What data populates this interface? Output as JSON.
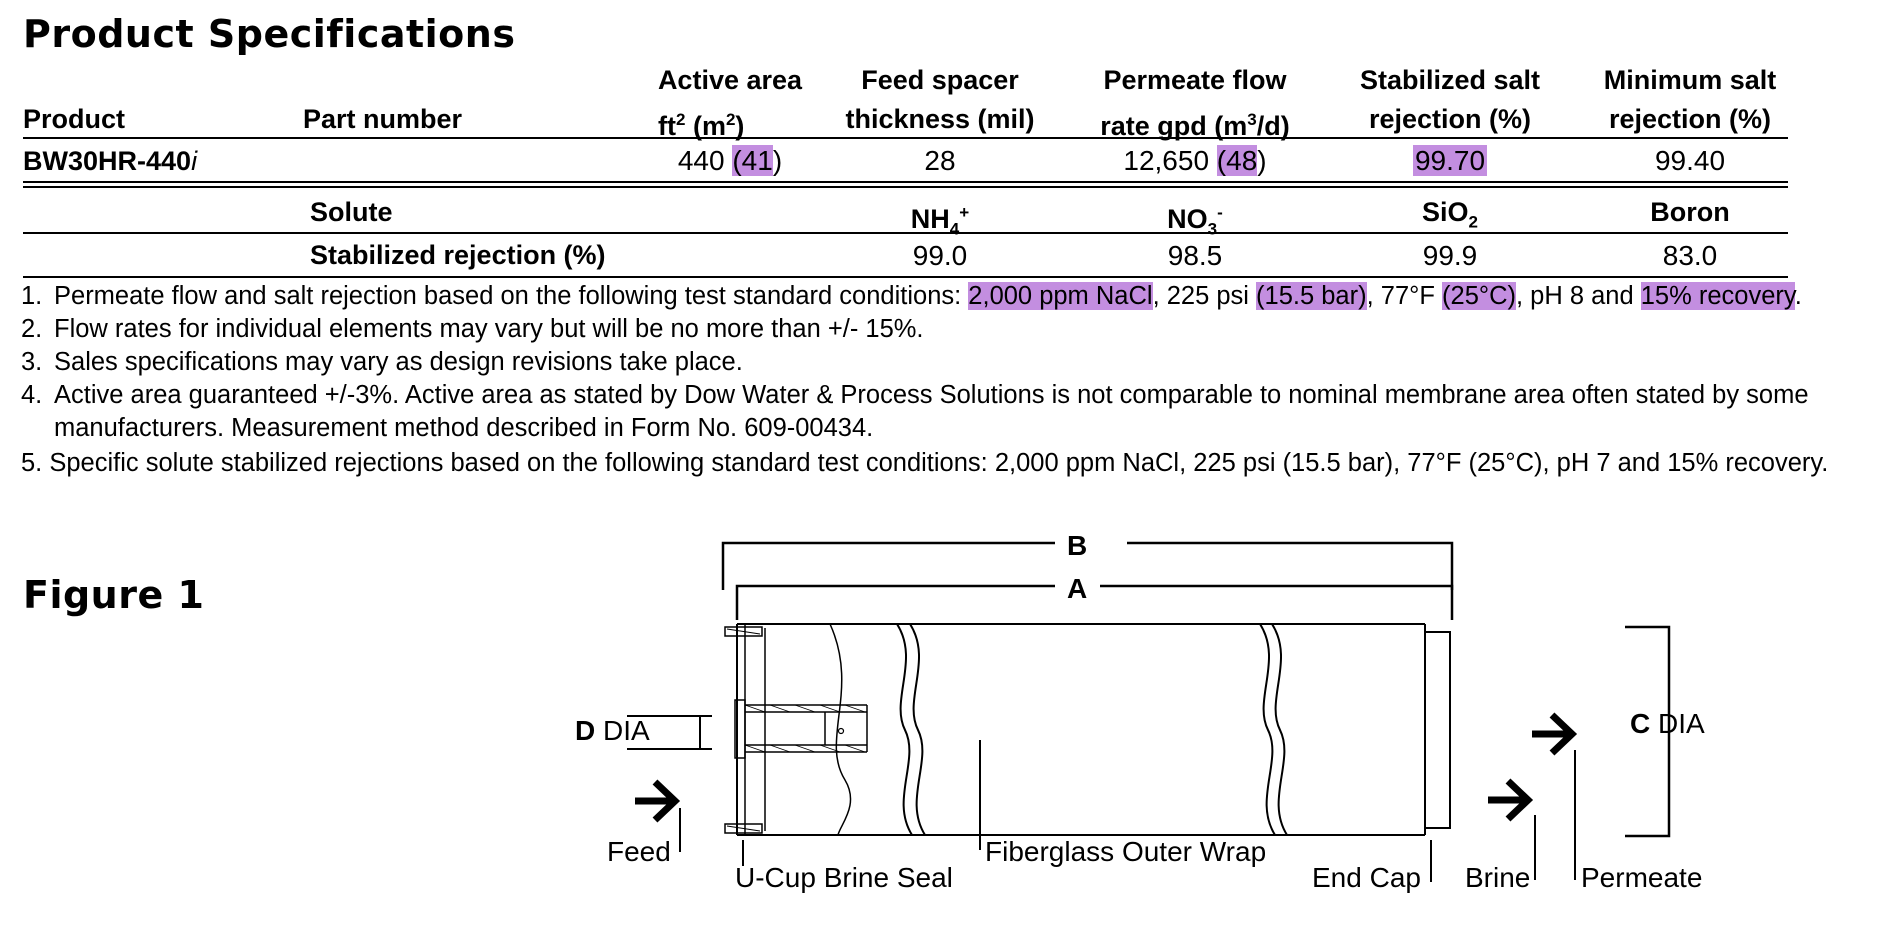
{
  "page": {
    "title": "Product Specifications",
    "figure_title": "Figure 1"
  },
  "spec_table": {
    "headers": {
      "product": "Product",
      "part_number": "Part number",
      "active_area_line1": "Active area",
      "active_area_line2_ft": "ft",
      "active_area_line2_sup": "2",
      "active_area_line2_mid": " (m",
      "active_area_line2_sup2": "2",
      "active_area_line2_end": ")",
      "feed_spacer_line1": "Feed spacer",
      "feed_spacer_line2": "thickness (mil)",
      "permeate_line1": "Permeate flow",
      "permeate_line2_a": "rate gpd (m",
      "permeate_line2_sup": "3",
      "permeate_line2_b": "/d)",
      "stabilized_line1": "Stabilized salt",
      "stabilized_line2": "rejection (%)",
      "minimum_line1": "Minimum salt",
      "minimum_line2": "rejection (%)"
    },
    "row": {
      "product": "BW30HR-440",
      "product_suffix": "i",
      "part_number": "",
      "active_area_ft": "440 ",
      "active_area_open": "(",
      "active_area_m2": "41",
      "active_area_close": ")",
      "feed_spacer": "28",
      "permeate_gpd": "12,650 ",
      "permeate_open": "(",
      "permeate_m3": "48",
      "permeate_close": ")",
      "stabilized": "99.70",
      "minimum": "99.40"
    }
  },
  "solute_table": {
    "solute_label": "Solute",
    "rejection_label": "Stabilized rejection (%)",
    "solutes": [
      {
        "base": "NH",
        "sub": "4",
        "sup": "+",
        "value": "99.0"
      },
      {
        "base": "NO",
        "sub": "3",
        "sup": "-",
        "value": "98.5"
      },
      {
        "base": "SiO",
        "sub": "2",
        "sup": "",
        "value": "99.9"
      },
      {
        "base": "Boron",
        "sub": "",
        "sup": "",
        "value": "83.0"
      }
    ]
  },
  "notes": {
    "n1_num": "1.",
    "n1_a": "Permeate flow and salt rejection based on the following test standard conditions: ",
    "n1_h1": "2,000 ppm NaCl",
    "n1_b": ", 225 psi ",
    "n1_h2": "(15.5 bar)",
    "n1_c": ", 77°F ",
    "n1_h3": "(25°C)",
    "n1_d": ", pH 8 and ",
    "n1_h4": "15% recovery",
    "n1_e": ".",
    "n2_num": "2.",
    "n2": "Flow rates for individual elements may vary but will be no more than +/- 15%.",
    "n3_num": "3.",
    "n3": "Sales specifications may vary as design revisions take place.",
    "n4_num": "4.",
    "n4_line1": "Active area guaranteed +/-3%.  Active area as stated by Dow Water & Process Solutions is not comparable to nominal membrane area often stated by some",
    "n4_line2": "manufacturers.  Measurement method described in Form No. 609-00434.",
    "n5": "5. Specific solute stabilized rejections based on the following standard test conditions: 2,000 ppm NaCl, 225 psi (15.5 bar), 77°F (25°C), pH 7 and 15% recovery."
  },
  "figure": {
    "dim_b": "B",
    "dim_a": "A",
    "dim_c_letter": "C",
    "dim_c_text": " DIA",
    "dim_d_letter": "D",
    "dim_d_text": " DIA",
    "label_feed": "Feed",
    "label_ucup": "U-Cup Brine Seal",
    "label_fiberglass": "Fiberglass Outer Wrap",
    "label_endcap": "End Cap",
    "label_brine": "Brine",
    "label_permeate": "Permeate"
  },
  "colors": {
    "highlight": "#c38ee0",
    "text": "#000000",
    "background": "#ffffff"
  }
}
